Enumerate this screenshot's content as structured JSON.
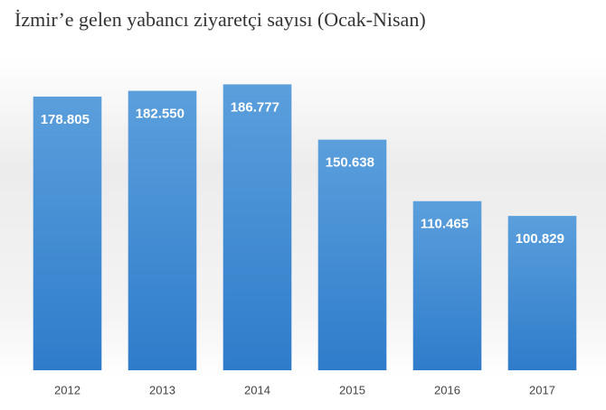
{
  "chart_data": {
    "type": "bar",
    "title": "İzmir’e gelen yabancı ziyaretçi sayısı (Ocak-Nisan)",
    "categories": [
      "2012",
      "2013",
      "2014",
      "2015",
      "2016",
      "2017"
    ],
    "values": [
      178805,
      182550,
      186777,
      150638,
      110465,
      100829
    ],
    "value_labels": [
      "178.805",
      "182.550",
      "186.777",
      "150.638",
      "110.465",
      "100.829"
    ],
    "color": "#4a8fd4",
    "ylim": [
      0,
      200000
    ]
  }
}
